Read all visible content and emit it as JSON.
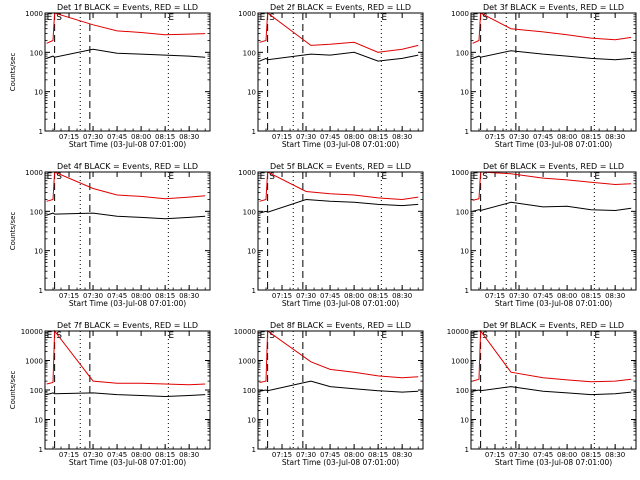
{
  "chart_data": [
    {
      "type": "line",
      "title": "Det 1f BLACK = Events, RED = LLD",
      "ylabel": "Counts/sec",
      "xlabel": "Start Time (03-Jul-08 07:01:00)",
      "yscale": "log",
      "ylim": [
        1,
        1000
      ],
      "xticks": [
        "07:15",
        "07:30",
        "07:45",
        "08:00",
        "08:15",
        "08:30"
      ],
      "markers": [
        {
          "label": "E",
          "x": "07:01"
        },
        {
          "label": "S",
          "x": "07:07"
        },
        {
          "label": "E",
          "x": "08:17"
        }
      ],
      "series": [
        {
          "name": "Events",
          "color": "#000000",
          "x": [
            "07:01",
            "07:05",
            "07:06",
            "07:30",
            "07:45",
            "08:00",
            "08:15",
            "08:30",
            "08:40"
          ],
          "values": [
            70,
            80,
            75,
            120,
            95,
            90,
            85,
            80,
            75
          ]
        },
        {
          "name": "LLD",
          "color": "#e00000",
          "x": [
            "07:01",
            "07:05",
            "07:06",
            "07:30",
            "07:45",
            "08:00",
            "08:15",
            "08:30",
            "08:40"
          ],
          "values": [
            170,
            200,
            1000,
            500,
            350,
            320,
            280,
            290,
            300
          ]
        }
      ]
    },
    {
      "type": "line",
      "title": "Det 2f BLACK = Events, RED = LLD",
      "ylabel": "",
      "xlabel": "Start Time (03-Jul-08 07:01:00)",
      "yscale": "log",
      "ylim": [
        1,
        1000
      ],
      "xticks": [
        "07:15",
        "07:30",
        "07:45",
        "08:00",
        "08:15",
        "08:30"
      ],
      "markers": [
        {
          "label": "E",
          "x": "07:01"
        },
        {
          "label": "S",
          "x": "07:07"
        },
        {
          "label": "E",
          "x": "08:17"
        }
      ],
      "series": [
        {
          "name": "Events",
          "color": "#000000",
          "x": [
            "07:01",
            "07:05",
            "07:06",
            "07:33",
            "07:45",
            "08:00",
            "08:15",
            "08:30",
            "08:40"
          ],
          "values": [
            60,
            70,
            65,
            90,
            85,
            100,
            60,
            70,
            85
          ]
        },
        {
          "name": "LLD",
          "color": "#e00000",
          "x": [
            "07:01",
            "07:05",
            "07:06",
            "07:33",
            "07:45",
            "08:00",
            "08:15",
            "08:30",
            "08:40"
          ],
          "values": [
            180,
            200,
            1000,
            150,
            160,
            180,
            100,
            120,
            150
          ]
        }
      ]
    },
    {
      "type": "line",
      "title": "Det 3f BLACK = Events, RED = LLD",
      "ylabel": "",
      "xlabel": "Start Time (03-Jul-08 07:01:00)",
      "yscale": "log",
      "ylim": [
        1,
        1000
      ],
      "xticks": [
        "07:15",
        "07:30",
        "07:45",
        "08:00",
        "08:15",
        "08:30"
      ],
      "markers": [
        {
          "label": "E",
          "x": "07:01"
        },
        {
          "label": "S",
          "x": "07:07"
        },
        {
          "label": "E",
          "x": "08:17"
        }
      ],
      "series": [
        {
          "name": "Events",
          "color": "#000000",
          "x": [
            "07:01",
            "07:05",
            "07:06",
            "07:25",
            "07:45",
            "08:00",
            "08:15",
            "08:30",
            "08:40"
          ],
          "values": [
            70,
            80,
            75,
            110,
            90,
            80,
            70,
            65,
            70
          ]
        },
        {
          "name": "LLD",
          "color": "#e00000",
          "x": [
            "07:01",
            "07:05",
            "07:06",
            "07:25",
            "07:45",
            "08:00",
            "08:15",
            "08:30",
            "08:40"
          ],
          "values": [
            170,
            200,
            1000,
            400,
            330,
            280,
            230,
            210,
            240
          ]
        }
      ]
    },
    {
      "type": "line",
      "title": "Det 4f BLACK = Events, RED = LLD",
      "ylabel": "Counts/sec",
      "xlabel": "Start Time (03-Jul-08 07:01:00)",
      "yscale": "log",
      "ylim": [
        1,
        1000
      ],
      "xticks": [
        "07:15",
        "07:30",
        "07:45",
        "08:00",
        "08:15",
        "08:30"
      ],
      "markers": [
        {
          "label": "E",
          "x": "07:01"
        },
        {
          "label": "S",
          "x": "07:07"
        },
        {
          "label": "E",
          "x": "08:17"
        }
      ],
      "series": [
        {
          "name": "Events",
          "color": "#000000",
          "x": [
            "07:01",
            "07:05",
            "07:06",
            "07:30",
            "07:45",
            "08:00",
            "08:15",
            "08:30",
            "08:40"
          ],
          "values": [
            80,
            90,
            85,
            90,
            75,
            70,
            65,
            70,
            75
          ]
        },
        {
          "name": "LLD",
          "color": "#e00000",
          "x": [
            "07:01",
            "07:05",
            "07:06",
            "07:30",
            "07:45",
            "08:00",
            "08:15",
            "08:30",
            "08:40"
          ],
          "values": [
            180,
            200,
            1000,
            380,
            260,
            240,
            210,
            230,
            250
          ]
        }
      ]
    },
    {
      "type": "line",
      "title": "Det 5f BLACK = Events, RED = LLD",
      "ylabel": "",
      "xlabel": "Start Time (03-Jul-08 07:01:00)",
      "yscale": "log",
      "ylim": [
        1,
        1000
      ],
      "xticks": [
        "07:15",
        "07:30",
        "07:45",
        "08:00",
        "08:15",
        "08:30"
      ],
      "markers": [
        {
          "label": "E",
          "x": "07:01"
        },
        {
          "label": "S",
          "x": "07:07"
        },
        {
          "label": "E",
          "x": "08:17"
        }
      ],
      "series": [
        {
          "name": "Events",
          "color": "#000000",
          "x": [
            "07:01",
            "07:05",
            "07:06",
            "07:30",
            "07:45",
            "08:00",
            "08:15",
            "08:30",
            "08:40"
          ],
          "values": [
            90,
            100,
            95,
            200,
            180,
            170,
            150,
            140,
            150
          ]
        },
        {
          "name": "LLD",
          "color": "#e00000",
          "x": [
            "07:01",
            "07:05",
            "07:06",
            "07:30",
            "07:45",
            "08:00",
            "08:15",
            "08:30",
            "08:40"
          ],
          "values": [
            180,
            200,
            1000,
            320,
            280,
            260,
            220,
            200,
            230
          ]
        }
      ]
    },
    {
      "type": "line",
      "title": "Det 6f BLACK = Events, RED = LLD",
      "ylabel": "",
      "xlabel": "Start Time (03-Jul-08 07:01:00)",
      "yscale": "log",
      "ylim": [
        1,
        1000
      ],
      "xticks": [
        "07:15",
        "07:30",
        "07:45",
        "08:00",
        "08:15",
        "08:30"
      ],
      "markers": [
        {
          "label": "E",
          "x": "07:01"
        },
        {
          "label": "S",
          "x": "07:07"
        },
        {
          "label": "E",
          "x": "08:17"
        }
      ],
      "series": [
        {
          "name": "Events",
          "color": "#000000",
          "x": [
            "07:01",
            "07:05",
            "07:06",
            "07:25",
            "07:45",
            "08:00",
            "08:15",
            "08:30",
            "08:40"
          ],
          "values": [
            100,
            110,
            105,
            170,
            130,
            135,
            110,
            105,
            120
          ]
        },
        {
          "name": "LLD",
          "color": "#e00000",
          "x": [
            "07:01",
            "07:05",
            "07:06",
            "07:25",
            "07:45",
            "08:00",
            "08:15",
            "08:30",
            "08:40"
          ],
          "values": [
            190,
            210,
            1000,
            900,
            700,
            630,
            550,
            480,
            500
          ]
        }
      ]
    },
    {
      "type": "line",
      "title": "Det 7f BLACK = Events, RED = LLD",
      "ylabel": "Counts/sec",
      "xlabel": "Start Time (03-Jul-08 07:01:00)",
      "yscale": "log",
      "ylim": [
        1,
        10000
      ],
      "xticks": [
        "07:15",
        "07:30",
        "07:45",
        "08:00",
        "08:15",
        "08:30"
      ],
      "markers": [
        {
          "label": "E",
          "x": "07:01"
        },
        {
          "label": "S",
          "x": "07:07"
        },
        {
          "label": "E",
          "x": "08:17"
        }
      ],
      "series": [
        {
          "name": "Events",
          "color": "#000000",
          "x": [
            "07:01",
            "07:05",
            "07:06",
            "07:30",
            "07:45",
            "08:00",
            "08:15",
            "08:30",
            "08:40"
          ],
          "values": [
            70,
            80,
            75,
            80,
            70,
            65,
            60,
            65,
            70
          ]
        },
        {
          "name": "LLD",
          "color": "#e00000",
          "x": [
            "07:01",
            "07:05",
            "07:06",
            "07:30",
            "07:45",
            "08:00",
            "08:15",
            "08:30",
            "08:40"
          ],
          "values": [
            160,
            180,
            10000,
            200,
            170,
            170,
            160,
            150,
            160
          ]
        }
      ]
    },
    {
      "type": "line",
      "title": "Det 8f BLACK = Events, RED = LLD",
      "ylabel": "",
      "xlabel": "Start Time (03-Jul-08 07:01:00)",
      "yscale": "log",
      "ylim": [
        1,
        10000
      ],
      "xticks": [
        "07:15",
        "07:30",
        "07:45",
        "08:00",
        "08:15",
        "08:30"
      ],
      "markers": [
        {
          "label": "E",
          "x": "07:01"
        },
        {
          "label": "S",
          "x": "07:07"
        },
        {
          "label": "E",
          "x": "08:17"
        }
      ],
      "series": [
        {
          "name": "Events",
          "color": "#000000",
          "x": [
            "07:01",
            "07:05",
            "07:06",
            "07:33",
            "07:45",
            "08:00",
            "08:15",
            "08:30",
            "08:40"
          ],
          "values": [
            90,
            100,
            95,
            200,
            130,
            110,
            95,
            85,
            90
          ]
        },
        {
          "name": "LLD",
          "color": "#e00000",
          "x": [
            "07:01",
            "07:05",
            "07:06",
            "07:33",
            "07:45",
            "08:00",
            "08:15",
            "08:30",
            "08:40"
          ],
          "values": [
            180,
            200,
            10000,
            900,
            500,
            400,
            300,
            260,
            280
          ]
        }
      ]
    },
    {
      "type": "line",
      "title": "Det 9f BLACK = Events, RED = LLD",
      "ylabel": "",
      "xlabel": "Start Time (03-Jul-08 07:01:00)",
      "yscale": "log",
      "ylim": [
        1,
        10000
      ],
      "xticks": [
        "07:15",
        "07:30",
        "07:45",
        "08:00",
        "08:15",
        "08:30"
      ],
      "markers": [
        {
          "label": "E",
          "x": "07:01"
        },
        {
          "label": "S",
          "x": "07:07"
        },
        {
          "label": "E",
          "x": "08:17"
        }
      ],
      "series": [
        {
          "name": "Events",
          "color": "#000000",
          "x": [
            "07:01",
            "07:05",
            "07:06",
            "07:25",
            "07:45",
            "08:00",
            "08:15",
            "08:30",
            "08:40"
          ],
          "values": [
            90,
            100,
            95,
            130,
            90,
            80,
            70,
            75,
            85
          ]
        },
        {
          "name": "LLD",
          "color": "#e00000",
          "x": [
            "07:01",
            "07:05",
            "07:06",
            "07:25",
            "07:45",
            "08:00",
            "08:15",
            "08:30",
            "08:40"
          ],
          "values": [
            200,
            230,
            10000,
            400,
            260,
            220,
            190,
            200,
            230
          ]
        }
      ]
    }
  ]
}
